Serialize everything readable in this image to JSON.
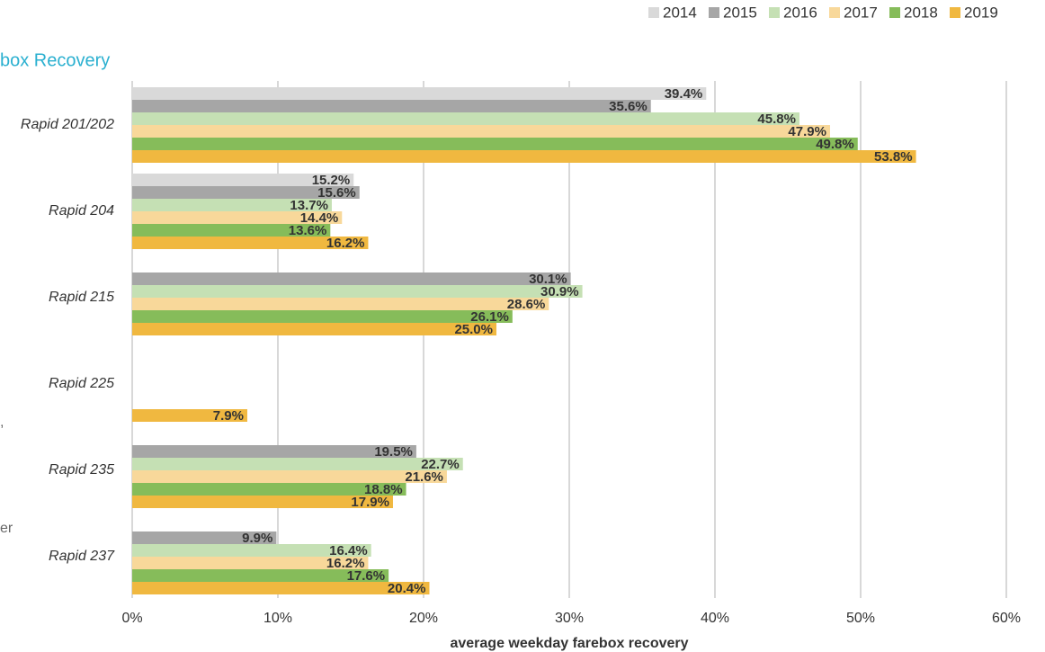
{
  "chart_data": {
    "type": "bar",
    "orientation": "horizontal",
    "title": "box Recovery",
    "annotations": [
      ",",
      "er"
    ],
    "x_label": "average weekday farebox recovery",
    "categories": [
      "Rapid 201/202",
      "Rapid 204",
      "Rapid 215",
      "Rapid 225",
      "Rapid 235",
      "Rapid 237"
    ],
    "series": [
      {
        "name": "2014",
        "color": "#d9d9d9",
        "values": [
          39.4,
          15.2,
          null,
          null,
          null,
          null
        ],
        "value_labels": [
          "39.4%",
          "15.2%",
          null,
          null,
          null,
          null
        ]
      },
      {
        "name": "2015",
        "color": "#a6a6a6",
        "values": [
          35.6,
          15.6,
          30.1,
          null,
          19.5,
          9.9
        ],
        "value_labels": [
          "35.6%",
          "15.6%",
          "30.1%",
          null,
          "19.5%",
          "9.9%"
        ]
      },
      {
        "name": "2016",
        "color": "#c5e0b4",
        "values": [
          45.8,
          13.7,
          30.9,
          null,
          22.7,
          16.4
        ],
        "value_labels": [
          "45.8%",
          "13.7%",
          "30.9%",
          null,
          "22.7%",
          "16.4%"
        ]
      },
      {
        "name": "2017",
        "color": "#f8d89a",
        "values": [
          47.9,
          14.4,
          28.6,
          null,
          21.6,
          16.2
        ],
        "value_labels": [
          "47.9%",
          "14.4%",
          "28.6%",
          null,
          "21.6%",
          "16.2%"
        ]
      },
      {
        "name": "2018",
        "color": "#86bc5a",
        "values": [
          49.8,
          13.6,
          26.1,
          null,
          18.8,
          17.6
        ],
        "value_labels": [
          "49.8%",
          "13.6%",
          "26.1%",
          null,
          "18.8%",
          "17.6%"
        ]
      },
      {
        "name": "2019",
        "color": "#f0b840",
        "values": [
          53.8,
          16.2,
          25.0,
          7.9,
          17.9,
          20.4
        ],
        "value_labels": [
          "53.8%",
          "16.2%",
          "25.0%",
          "7.9%",
          "17.9%",
          "20.4%"
        ]
      }
    ],
    "xlim": [
      0,
      60
    ],
    "xticks": [
      {
        "value": 0,
        "label": "0%"
      },
      {
        "value": 10,
        "label": "10%"
      },
      {
        "value": 20,
        "label": "20%"
      },
      {
        "value": 30,
        "label": "30%"
      },
      {
        "value": 40,
        "label": "40%"
      },
      {
        "value": 50,
        "label": "50%"
      },
      {
        "value": 60,
        "label": "60%"
      }
    ],
    "grid": true,
    "legend": "top-right"
  }
}
